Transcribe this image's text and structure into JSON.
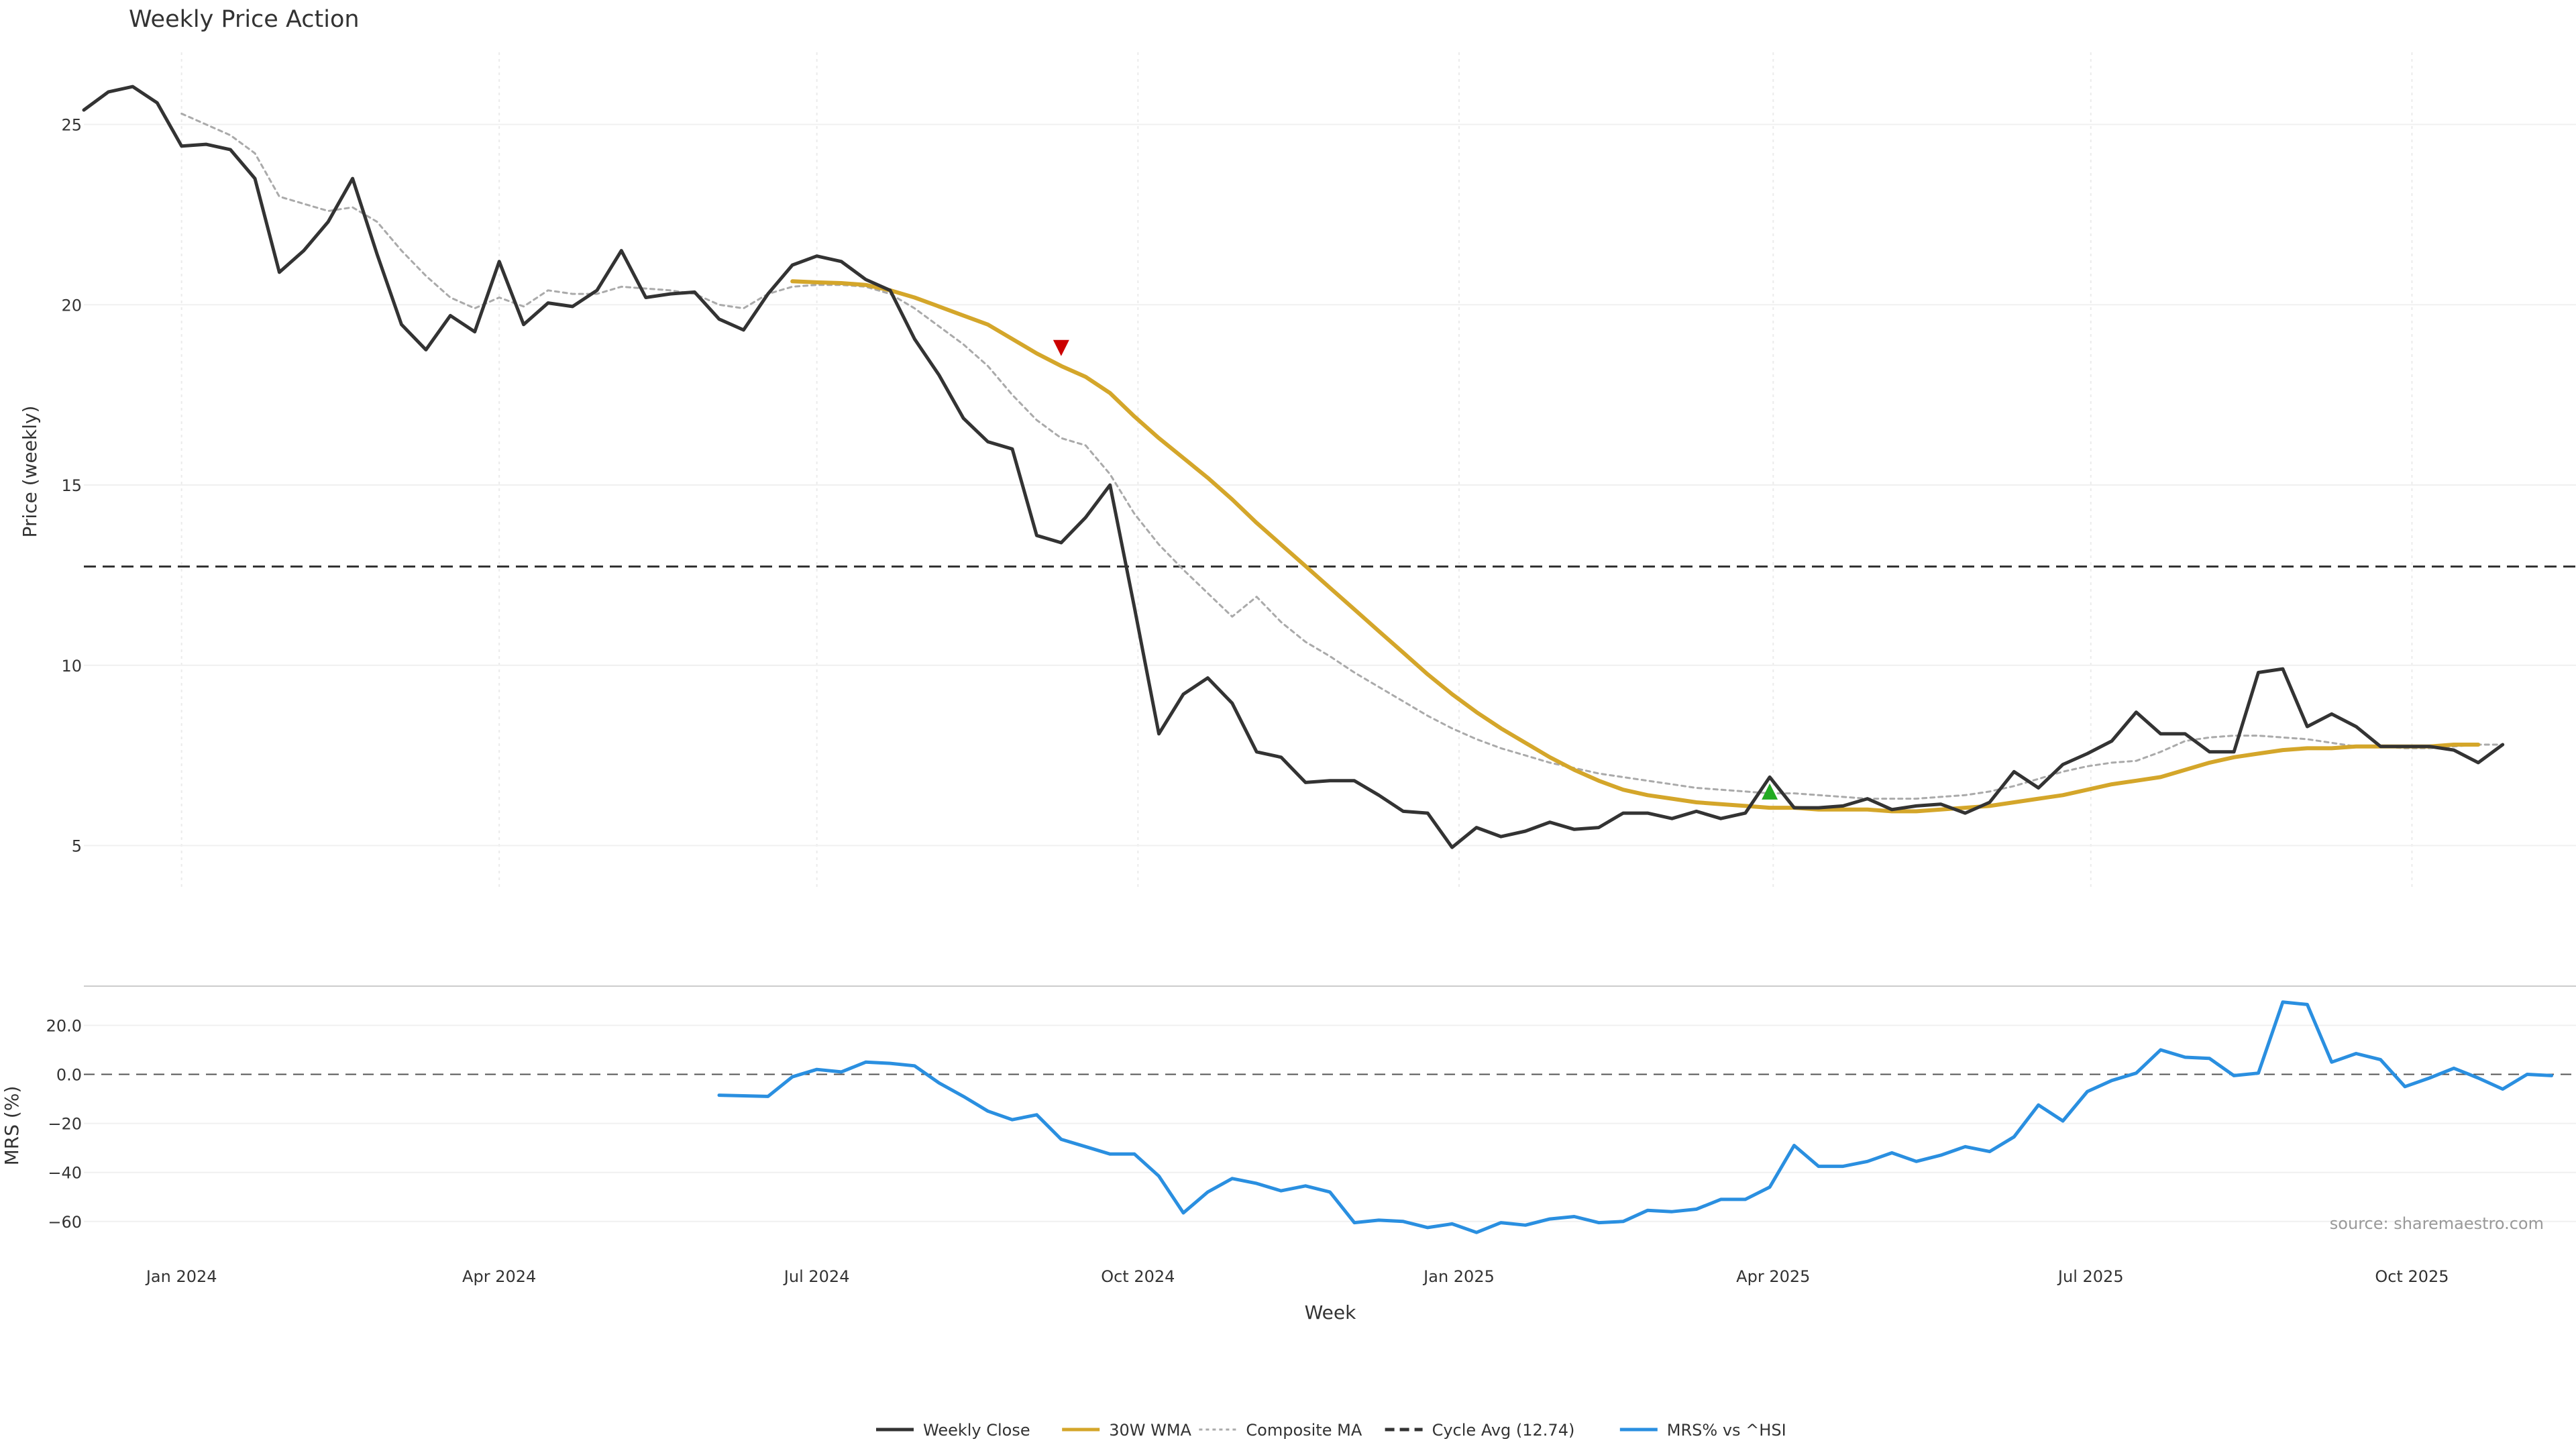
{
  "chart_data": {
    "type": "line",
    "title": "Weekly Price Action",
    "xlabel": "Week",
    "source": "source: sharemaestro.com",
    "x_ticks": [
      "Jan 2024",
      "Apr 2024",
      "Jul 2024",
      "Oct 2024",
      "Jan 2025",
      "Apr 2025",
      "Jul 2025",
      "Oct 2025"
    ],
    "x_tick_dates": [
      "2024-01-01",
      "2024-04-01",
      "2024-07-01",
      "2024-10-01",
      "2025-01-01",
      "2025-04-01",
      "2025-07-01",
      "2025-10-01"
    ],
    "x_range": [
      "2023-12-04",
      "2025-11-17"
    ],
    "price_panel": {
      "ylabel": "Price (weekly)",
      "ylim": [
        3.8,
        27
      ],
      "yticks": [
        "5",
        "10",
        "15",
        "20",
        "25"
      ],
      "grid": true,
      "start_date": "2023-12-04",
      "series": [
        {
          "name": "Weekly Close",
          "color": "#333333",
          "style": "solid",
          "values": [
            25.4,
            25.9,
            26.05,
            25.6,
            24.4,
            24.45,
            24.3,
            23.5,
            20.9,
            21.5,
            22.3,
            23.5,
            21.4,
            19.45,
            18.75,
            19.7,
            19.25,
            21.2,
            19.45,
            20.05,
            19.95,
            20.4,
            21.5,
            20.2,
            20.3,
            20.35,
            19.6,
            19.3,
            20.3,
            21.1,
            21.35,
            21.2,
            20.7,
            20.4,
            19.05,
            18.05,
            16.85,
            16.2,
            16.0,
            13.6,
            13.4,
            14.1,
            15.0,
            11.6,
            8.1,
            9.2,
            9.65,
            8.95,
            7.6,
            7.45,
            6.75,
            6.8,
            6.8,
            6.4,
            5.95,
            5.9,
            4.95,
            5.5,
            5.25,
            5.4,
            5.65,
            5.45,
            5.5,
            5.9,
            5.9,
            5.75,
            5.95,
            5.75,
            5.9,
            6.9,
            6.05,
            6.05,
            6.1,
            6.3,
            6.0,
            6.1,
            6.15,
            5.9,
            6.2,
            7.05,
            6.6,
            7.25,
            7.55,
            7.9,
            8.7,
            8.1,
            8.1,
            7.6,
            7.6,
            9.8,
            9.9,
            8.3,
            8.65,
            8.3,
            7.75,
            7.75,
            7.75,
            7.65,
            7.3,
            7.8
          ]
        },
        {
          "name": "30W WMA",
          "color": "#d4a62a",
          "style": "solid",
          "start_index": 29,
          "values": [
            20.65,
            20.62,
            20.6,
            20.55,
            20.4,
            20.2,
            19.95,
            19.7,
            19.45,
            19.05,
            18.65,
            18.3,
            18.0,
            17.55,
            16.9,
            16.3,
            15.75,
            15.2,
            14.6,
            13.95,
            13.35,
            12.75,
            12.15,
            11.55,
            10.95,
            10.35,
            9.75,
            9.2,
            8.7,
            8.25,
            7.85,
            7.45,
            7.1,
            6.8,
            6.55,
            6.4,
            6.3,
            6.2,
            6.15,
            6.1,
            6.05,
            6.05,
            6.0,
            6.0,
            6.0,
            5.95,
            5.95,
            6.0,
            6.05,
            6.1,
            6.2,
            6.3,
            6.4,
            6.55,
            6.7,
            6.8,
            6.9,
            7.1,
            7.3,
            7.45,
            7.55,
            7.65,
            7.7,
            7.7,
            7.75,
            7.75,
            7.75,
            7.75,
            7.8,
            7.8
          ]
        },
        {
          "name": "Composite MA",
          "color": "#aaaaaa",
          "style": "dotted",
          "start_index": 4,
          "values": [
            25.3,
            25.0,
            24.7,
            24.2,
            23.0,
            22.8,
            22.6,
            22.7,
            22.3,
            21.5,
            20.8,
            20.2,
            19.9,
            20.2,
            19.95,
            20.4,
            20.3,
            20.3,
            20.5,
            20.45,
            20.4,
            20.3,
            20.0,
            19.9,
            20.3,
            20.5,
            20.55,
            20.55,
            20.5,
            20.3,
            19.9,
            19.4,
            18.9,
            18.3,
            17.5,
            16.8,
            16.3,
            16.1,
            15.3,
            14.2,
            13.35,
            12.65,
            12.0,
            11.35,
            11.9,
            11.2,
            10.65,
            10.25,
            9.8,
            9.4,
            9.0,
            8.6,
            8.25,
            7.95,
            7.7,
            7.5,
            7.3,
            7.15,
            7.0,
            6.9,
            6.8,
            6.7,
            6.6,
            6.55,
            6.5,
            6.45,
            6.45,
            6.4,
            6.35,
            6.3,
            6.3,
            6.3,
            6.35,
            6.4,
            6.5,
            6.65,
            6.85,
            7.05,
            7.2,
            7.3,
            7.35,
            7.6,
            7.9,
            8.0,
            8.05,
            8.05,
            8.0,
            7.95,
            7.85,
            7.75,
            7.75,
            7.7,
            7.7,
            7.75,
            7.8,
            7.8
          ]
        }
      ],
      "cycle_avg": {
        "name": "Cycle Avg (12.74)",
        "value": 12.74,
        "color": "#333333",
        "style": "dashed"
      },
      "markers": [
        {
          "type": "sell",
          "date": "2024-09-09",
          "value": 18.8,
          "color": "#cc0000"
        },
        {
          "type": "buy",
          "date": "2025-03-31",
          "value": 6.5,
          "color": "#22aa22"
        }
      ]
    },
    "mrs_panel": {
      "ylabel": "MRS (%)",
      "ylim": [
        -68,
        36
      ],
      "yticks": [
        "20.0",
        "0.0",
        "−20",
        "−40",
        "−60"
      ],
      "zero_line": true,
      "series": [
        {
          "name": "MRS% vs ^HSI",
          "color": "#2a8fe0",
          "style": "solid",
          "start_date": "2024-06-03",
          "step_weeks": 1,
          "points": [
            [
              0,
              -8.5
            ],
            [
              2,
              -9.0
            ],
            [
              3,
              -1.0
            ],
            [
              4,
              2.0
            ],
            [
              5,
              1.0
            ],
            [
              6,
              5.0
            ],
            [
              7,
              4.5
            ],
            [
              8,
              3.5
            ],
            [
              9,
              -3.5
            ],
            [
              10,
              -9.0
            ],
            [
              11,
              -15.0
            ],
            [
              12,
              -18.5
            ],
            [
              13,
              -16.5
            ],
            [
              14,
              -26.5
            ],
            [
              15,
              -29.5
            ],
            [
              16,
              -32.5
            ],
            [
              17,
              -32.5
            ],
            [
              18,
              -41.5
            ],
            [
              19,
              -56.5
            ],
            [
              20,
              -48.0
            ],
            [
              21,
              -42.5
            ],
            [
              22,
              -44.5
            ],
            [
              23,
              -47.5
            ],
            [
              24,
              -45.5
            ],
            [
              25,
              -48.0
            ],
            [
              26,
              -60.5
            ],
            [
              27,
              -59.5
            ],
            [
              28,
              -60.0
            ],
            [
              29,
              -62.5
            ],
            [
              30,
              -61.0
            ],
            [
              31,
              -64.5
            ],
            [
              32,
              -60.5
            ],
            [
              33,
              -61.5
            ],
            [
              34,
              -59.0
            ],
            [
              35,
              -58.0
            ],
            [
              36,
              -60.5
            ],
            [
              37,
              -60.0
            ],
            [
              38,
              -55.5
            ],
            [
              39,
              -56.0
            ],
            [
              40,
              -55.0
            ],
            [
              41,
              -51.0
            ],
            [
              42,
              -51.0
            ],
            [
              43,
              -46.0
            ],
            [
              44,
              -29.0
            ],
            [
              45,
              -37.5
            ],
            [
              46,
              -37.5
            ],
            [
              47,
              -35.5
            ],
            [
              48,
              -32.0
            ],
            [
              49,
              -35.5
            ],
            [
              50,
              -33.0
            ],
            [
              51,
              -29.5
            ],
            [
              52,
              -31.5
            ],
            [
              53,
              -25.5
            ],
            [
              54,
              -12.5
            ],
            [
              55,
              -19.0
            ],
            [
              56,
              -7.0
            ],
            [
              57,
              -2.5
            ],
            [
              58,
              0.5
            ],
            [
              59,
              10.0
            ],
            [
              60,
              7.0
            ],
            [
              61,
              6.5
            ],
            [
              62,
              -0.5
            ],
            [
              63,
              0.5
            ],
            [
              64,
              29.5
            ],
            [
              65,
              28.5
            ],
            [
              66,
              5.0
            ],
            [
              67,
              8.5
            ],
            [
              68,
              6.0
            ],
            [
              69,
              -5.0
            ],
            [
              70,
              -1.5
            ],
            [
              71,
              2.5
            ],
            [
              72,
              -1.5
            ],
            [
              73,
              -6.0
            ],
            [
              74,
              0.0
            ],
            [
              75,
              -0.5
            ]
          ]
        }
      ]
    },
    "legend": {
      "placement": "bottom-center",
      "items": [
        {
          "label": "Weekly Close",
          "color": "#333333",
          "style": "solid"
        },
        {
          "label": "30W WMA",
          "color": "#d4a62a",
          "style": "solid"
        },
        {
          "label": "Composite MA",
          "color": "#aaaaaa",
          "style": "dotted"
        },
        {
          "label": "Cycle Avg (12.74)",
          "color": "#333333",
          "style": "dashed"
        },
        {
          "label": "MRS% vs ^HSI",
          "color": "#2a8fe0",
          "style": "solid"
        }
      ]
    }
  }
}
